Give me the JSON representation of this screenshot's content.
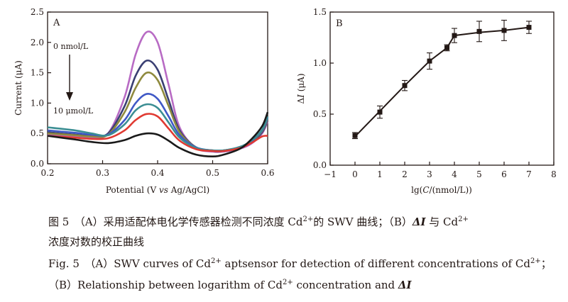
{
  "chart_data": [
    {
      "type": "line",
      "panel_label": "A",
      "xlabel_pre": "Potential (V ",
      "xlabel_it": "vs",
      "xlabel_post": " Ag/AgCl)",
      "ylabel": "Current (μA)",
      "xlim": [
        0.2,
        0.6
      ],
      "ylim": [
        0.0,
        2.5
      ],
      "xticks": [
        0.2,
        0.3,
        0.4,
        0.5,
        0.6
      ],
      "yticks": [
        0.0,
        0.5,
        1.0,
        1.5,
        2.0,
        2.5
      ],
      "annotation_top": "0 nmol/L",
      "annotation_bottom": "10 μmol/L",
      "series": [
        {
          "color": "#b86bc4",
          "x": [
            0.2,
            0.25,
            0.28,
            0.31,
            0.34,
            0.36,
            0.38,
            0.4,
            0.42,
            0.44,
            0.47,
            0.5,
            0.52,
            0.55,
            0.57,
            0.59,
            0.6
          ],
          "y": [
            0.48,
            0.45,
            0.43,
            0.5,
            1.1,
            1.8,
            2.17,
            2.0,
            1.3,
            0.6,
            0.26,
            0.2,
            0.2,
            0.25,
            0.33,
            0.5,
            0.7
          ]
        },
        {
          "color": "#3a3f73",
          "x": [
            0.2,
            0.25,
            0.28,
            0.31,
            0.34,
            0.36,
            0.38,
            0.4,
            0.42,
            0.44,
            0.47,
            0.5,
            0.52,
            0.55,
            0.57,
            0.59,
            0.6
          ],
          "y": [
            0.52,
            0.48,
            0.46,
            0.5,
            0.95,
            1.45,
            1.7,
            1.55,
            1.05,
            0.55,
            0.27,
            0.21,
            0.21,
            0.26,
            0.35,
            0.52,
            0.72
          ]
        },
        {
          "color": "#8f8a3e",
          "x": [
            0.2,
            0.25,
            0.28,
            0.31,
            0.34,
            0.36,
            0.38,
            0.4,
            0.42,
            0.44,
            0.47,
            0.5,
            0.52,
            0.55,
            0.57,
            0.59,
            0.6
          ],
          "y": [
            0.5,
            0.47,
            0.45,
            0.48,
            0.85,
            1.25,
            1.5,
            1.38,
            0.95,
            0.52,
            0.27,
            0.22,
            0.22,
            0.27,
            0.36,
            0.54,
            0.74
          ]
        },
        {
          "color": "#3f58c6",
          "x": [
            0.2,
            0.25,
            0.28,
            0.31,
            0.34,
            0.36,
            0.38,
            0.4,
            0.42,
            0.44,
            0.47,
            0.5,
            0.52,
            0.55,
            0.57,
            0.59,
            0.6
          ],
          "y": [
            0.55,
            0.51,
            0.48,
            0.48,
            0.72,
            1.0,
            1.15,
            1.07,
            0.78,
            0.47,
            0.27,
            0.22,
            0.22,
            0.27,
            0.37,
            0.55,
            0.76
          ]
        },
        {
          "color": "#3b8e93",
          "x": [
            0.2,
            0.25,
            0.28,
            0.31,
            0.34,
            0.36,
            0.38,
            0.4,
            0.42,
            0.44,
            0.47,
            0.5,
            0.52,
            0.55,
            0.57,
            0.59,
            0.6
          ],
          "y": [
            0.6,
            0.55,
            0.5,
            0.47,
            0.65,
            0.88,
            0.98,
            0.92,
            0.68,
            0.43,
            0.26,
            0.22,
            0.22,
            0.28,
            0.38,
            0.56,
            0.78
          ]
        },
        {
          "color": "#e03a32",
          "x": [
            0.2,
            0.25,
            0.28,
            0.31,
            0.34,
            0.36,
            0.38,
            0.4,
            0.42,
            0.44,
            0.47,
            0.5,
            0.52,
            0.55,
            0.57,
            0.59,
            0.6
          ],
          "y": [
            0.46,
            0.43,
            0.41,
            0.42,
            0.55,
            0.72,
            0.82,
            0.78,
            0.58,
            0.38,
            0.24,
            0.21,
            0.21,
            0.26,
            0.34,
            0.45,
            0.46
          ]
        },
        {
          "color": "#1a1a1a",
          "x": [
            0.2,
            0.25,
            0.28,
            0.31,
            0.34,
            0.36,
            0.38,
            0.4,
            0.42,
            0.44,
            0.47,
            0.5,
            0.52,
            0.55,
            0.57,
            0.59,
            0.6
          ],
          "y": [
            0.46,
            0.4,
            0.36,
            0.34,
            0.39,
            0.46,
            0.5,
            0.48,
            0.38,
            0.26,
            0.15,
            0.12,
            0.15,
            0.25,
            0.4,
            0.62,
            0.85
          ]
        }
      ]
    },
    {
      "type": "scatter",
      "panel_label": "B",
      "xlabel_pre": "lg(",
      "xlabel_it": "C",
      "xlabel_post": "/(nmol/L))",
      "ylabel_pre": "Δ",
      "ylabel_it": "I",
      "ylabel_post": " (μA)",
      "xlim": [
        -1,
        8
      ],
      "ylim": [
        0.0,
        1.5
      ],
      "xticks": [
        -1,
        0,
        1,
        2,
        3,
        4,
        5,
        6,
        7,
        8
      ],
      "yticks": [
        0.0,
        0.5,
        1.0,
        1.5
      ],
      "points": {
        "x": [
          0,
          1,
          2,
          3,
          3.7,
          4,
          5,
          6,
          7
        ],
        "y": [
          0.29,
          0.52,
          0.78,
          1.02,
          1.15,
          1.27,
          1.31,
          1.32,
          1.35
        ],
        "err": [
          0.03,
          0.06,
          0.05,
          0.08,
          0.03,
          0.07,
          0.1,
          0.1,
          0.06
        ]
      },
      "fit_x": [
        0,
        1,
        2,
        3,
        3.7,
        4,
        5,
        6,
        7
      ],
      "fit_y": [
        0.28,
        0.53,
        0.78,
        1.02,
        1.15,
        1.27,
        1.3,
        1.32,
        1.35
      ]
    }
  ],
  "caption": {
    "cn_line1_a": "图 5　（A）采用适配体电化学传感器检测不同浓度 Cd",
    "cn_line1_sup": "2+",
    "cn_line1_b": "的 SWV 曲线；（B）",
    "cn_line1_bi": "ΔI",
    "cn_line1_c": " 与 Cd",
    "cn_line1_sup2": "2+",
    "cn_line2": "浓度对数的校正曲线",
    "en_line1_a": "Fig. 5　（A）SWV curves of Cd",
    "en_line1_sup": "2+",
    "en_line1_b": " aptsensor for detection of different concentrations of Cd",
    "en_line1_sup2": "2+",
    "en_line1_c": "；",
    "en_line2_a": "（B）Relationship between logarithm of Cd",
    "en_line2_sup": "2+",
    "en_line2_b": " concentration and ",
    "en_line2_bi": "ΔI"
  }
}
